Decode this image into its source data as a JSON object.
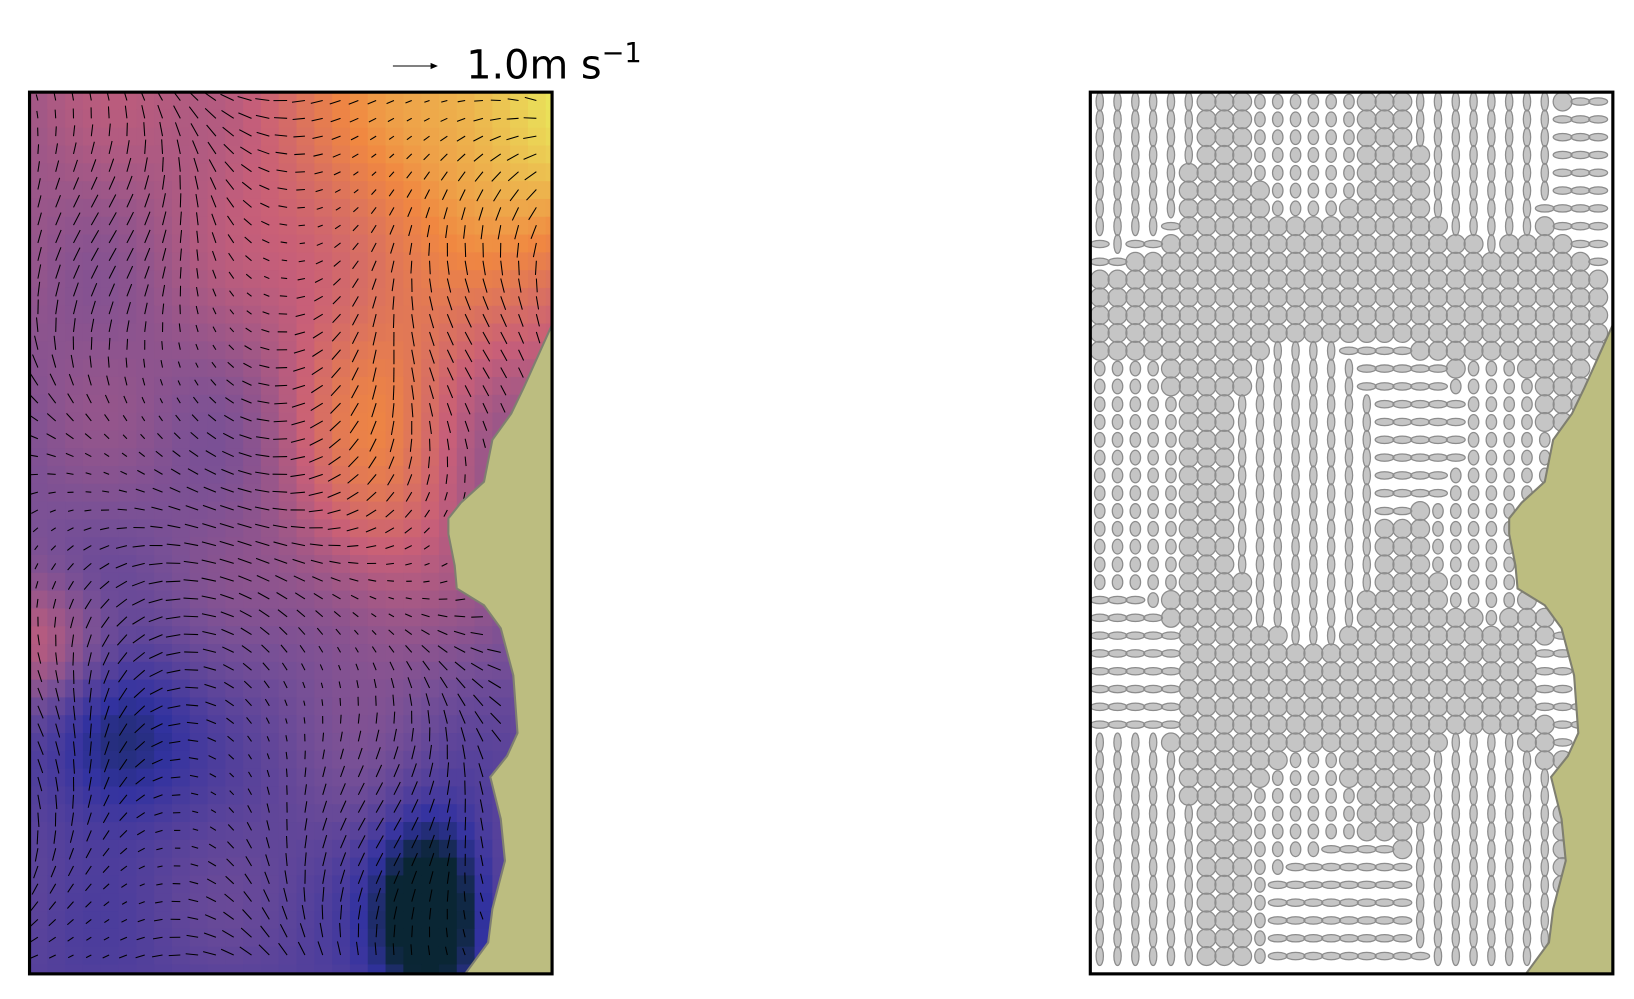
{
  "quiver_key": {
    "label": "1.0m s",
    "superscript": "−1"
  }
}
